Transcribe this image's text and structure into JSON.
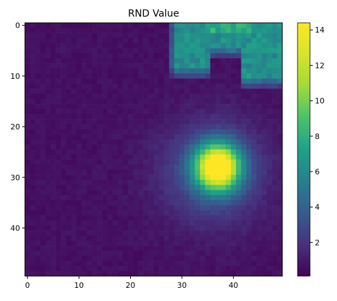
{
  "chart_data": {
    "type": "heatmap",
    "title": "RND Value",
    "xlabel": "",
    "ylabel": "",
    "grid_size": [
      50,
      50
    ],
    "x_ticks": [
      0,
      10,
      20,
      30,
      40
    ],
    "y_ticks": [
      0,
      10,
      20,
      30,
      40
    ],
    "colorbar": {
      "ticks": [
        2,
        4,
        6,
        8,
        10,
        12,
        14
      ],
      "range": [
        0.1,
        14.4
      ]
    },
    "colormap": "viridis",
    "values": {
      "background": 0.4,
      "peak": {
        "row": 28,
        "col": 37,
        "value": 14.2
      },
      "top_blob": {
        "rows": [
          0,
          12
        ],
        "cols": [
          27,
          49
        ],
        "max_value": 6.5
      },
      "halo_rows": [
        15,
        40
      ],
      "halo_cols": [
        25,
        47
      ]
    }
  }
}
